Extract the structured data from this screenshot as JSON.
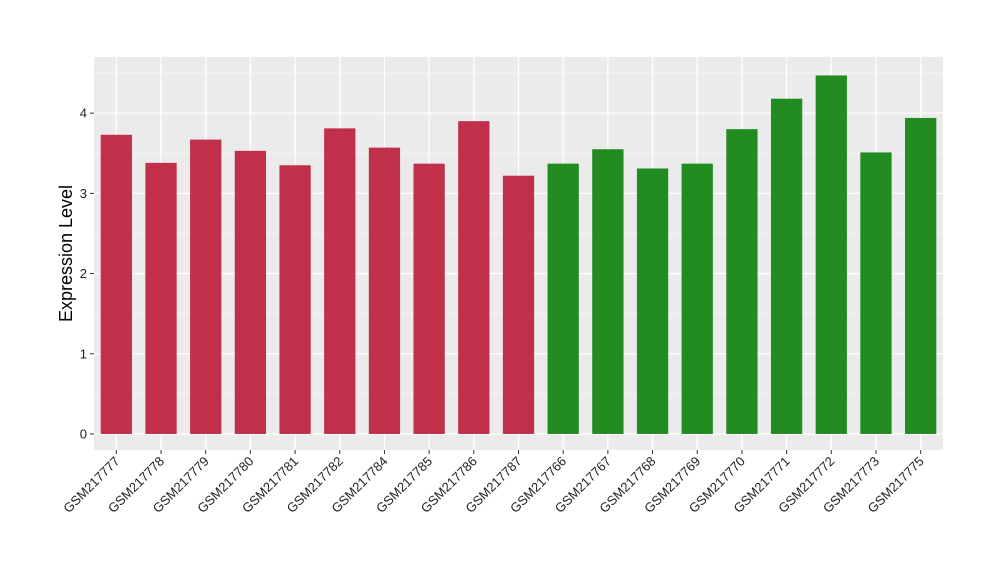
{
  "chart_data": {
    "type": "bar",
    "title": "",
    "xlabel": "",
    "ylabel": "Expression Level",
    "ylim": [
      -0.2,
      4.7
    ],
    "yticks": [
      0,
      1,
      2,
      3,
      4
    ],
    "grid": true,
    "legend": "none",
    "categories": [
      "GSM217777",
      "GSM217778",
      "GSM217779",
      "GSM217780",
      "GSM217781",
      "GSM217782",
      "GSM217784",
      "GSM217785",
      "GSM217786",
      "GSM217787",
      "GSM217766",
      "GSM217767",
      "GSM217768",
      "GSM217769",
      "GSM217770",
      "GSM217771",
      "GSM217772",
      "GSM217773",
      "GSM217775"
    ],
    "values": [
      3.73,
      3.38,
      3.67,
      3.53,
      3.35,
      3.81,
      3.57,
      3.37,
      3.9,
      3.22,
      3.37,
      3.55,
      3.31,
      3.37,
      3.8,
      4.18,
      4.47,
      3.51,
      3.94
    ],
    "bar_colors": [
      "#C0304A",
      "#C0304A",
      "#C0304A",
      "#C0304A",
      "#C0304A",
      "#C0304A",
      "#C0304A",
      "#C0304A",
      "#C0304A",
      "#C0304A",
      "#228B22",
      "#228B22",
      "#228B22",
      "#228B22",
      "#228B22",
      "#228B22",
      "#228B22",
      "#228B22",
      "#228B22"
    ]
  },
  "colors": {
    "panel_background": "#EBEBEB",
    "grid_major": "#FFFFFF",
    "grid_minor": "#F5F5F5",
    "tick_color": "#333333"
  }
}
